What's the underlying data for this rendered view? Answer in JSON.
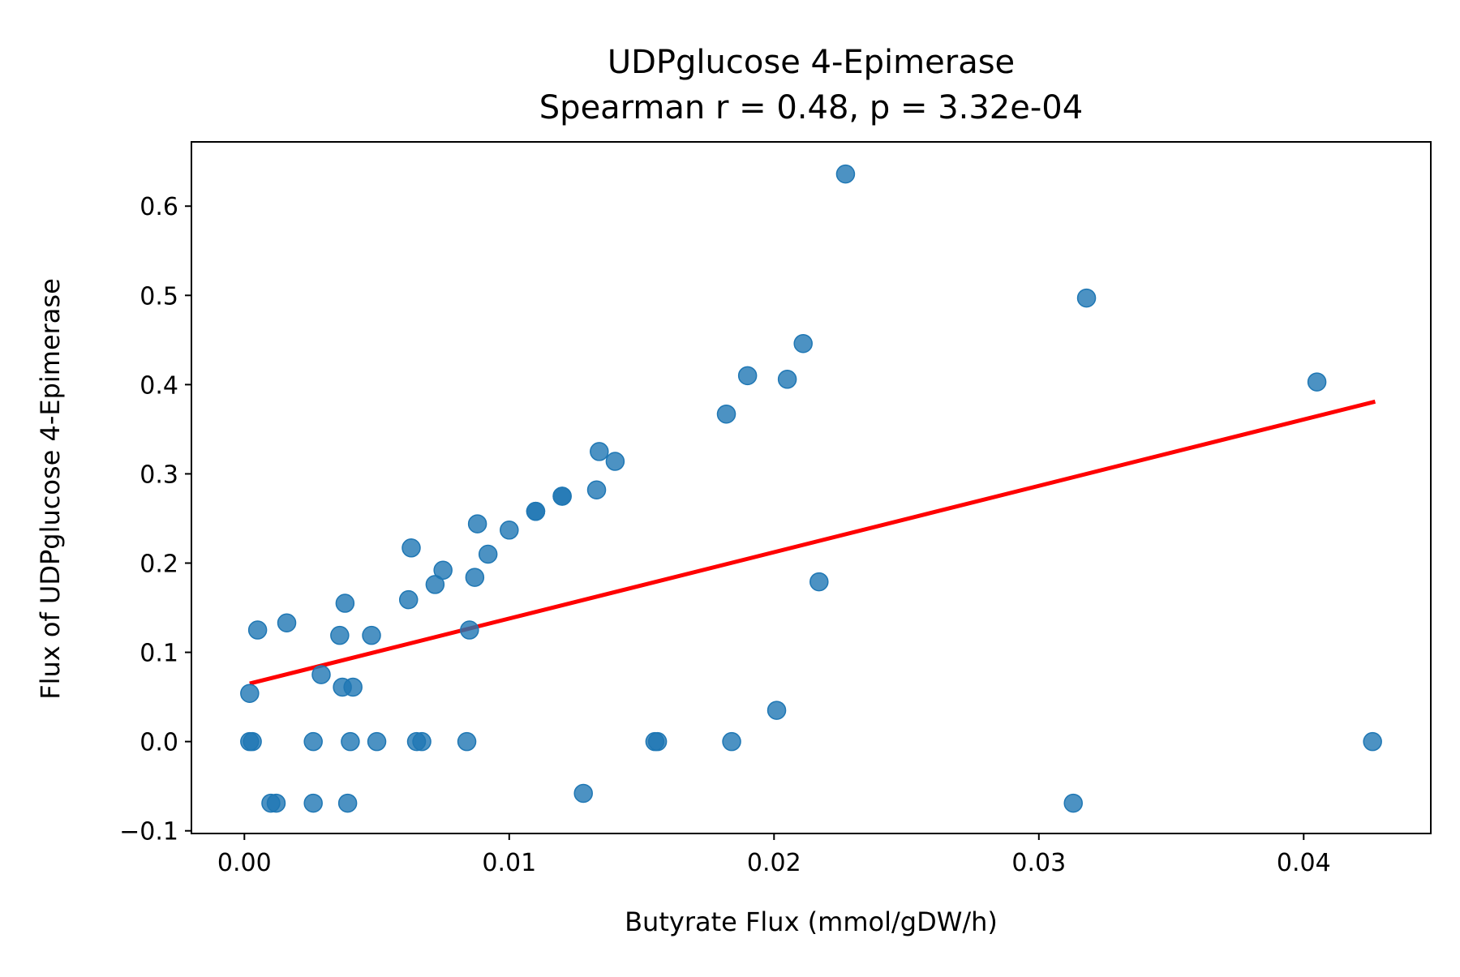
{
  "chart_data": {
    "type": "scatter",
    "title": "UDPglucose 4-Epimerase",
    "subtitle": "Spearman r = 0.48, p = 3.32e-04",
    "xlabel": "Butyrate Flux (mmol/gDW/h)",
    "ylabel": "Flux of UDPglucose 4-Epimerase",
    "xlim": [
      -0.002,
      0.0448
    ],
    "ylim": [
      -0.103,
      0.672
    ],
    "xticks": [
      0.0,
      0.01,
      0.02,
      0.03,
      0.04
    ],
    "xtick_labels": [
      "0.00",
      "0.01",
      "0.02",
      "0.03",
      "0.04"
    ],
    "yticks": [
      -0.1,
      0.0,
      0.1,
      0.2,
      0.3,
      0.4,
      0.5,
      0.6
    ],
    "ytick_labels": [
      "−0.1",
      "0.0",
      "0.1",
      "0.2",
      "0.3",
      "0.4",
      "0.5",
      "0.6"
    ],
    "grid": false,
    "point_color": "#1f77b4",
    "line_color": "#ff0000",
    "points": [
      {
        "x": 0.0002,
        "y": 0.054
      },
      {
        "x": 0.0002,
        "y": 0.0
      },
      {
        "x": 0.0003,
        "y": 0.0
      },
      {
        "x": 0.0005,
        "y": 0.125
      },
      {
        "x": 0.001,
        "y": -0.069
      },
      {
        "x": 0.0012,
        "y": -0.069
      },
      {
        "x": 0.0016,
        "y": 0.133
      },
      {
        "x": 0.0026,
        "y": -0.069
      },
      {
        "x": 0.0026,
        "y": 0.0
      },
      {
        "x": 0.0029,
        "y": 0.075
      },
      {
        "x": 0.0036,
        "y": 0.119
      },
      {
        "x": 0.0037,
        "y": 0.061
      },
      {
        "x": 0.0038,
        "y": 0.155
      },
      {
        "x": 0.0039,
        "y": -0.069
      },
      {
        "x": 0.004,
        "y": 0.0
      },
      {
        "x": 0.0041,
        "y": 0.061
      },
      {
        "x": 0.0048,
        "y": 0.119
      },
      {
        "x": 0.005,
        "y": 0.0
      },
      {
        "x": 0.0062,
        "y": 0.159
      },
      {
        "x": 0.0063,
        "y": 0.217
      },
      {
        "x": 0.0065,
        "y": 0.0
      },
      {
        "x": 0.0067,
        "y": 0.0
      },
      {
        "x": 0.0072,
        "y": 0.176
      },
      {
        "x": 0.0075,
        "y": 0.192
      },
      {
        "x": 0.0084,
        "y": 0.0
      },
      {
        "x": 0.0085,
        "y": 0.125
      },
      {
        "x": 0.0087,
        "y": 0.184
      },
      {
        "x": 0.0088,
        "y": 0.244
      },
      {
        "x": 0.0092,
        "y": 0.21
      },
      {
        "x": 0.01,
        "y": 0.237
      },
      {
        "x": 0.011,
        "y": 0.258
      },
      {
        "x": 0.011,
        "y": 0.258
      },
      {
        "x": 0.012,
        "y": 0.275
      },
      {
        "x": 0.012,
        "y": 0.275
      },
      {
        "x": 0.0128,
        "y": -0.058
      },
      {
        "x": 0.0133,
        "y": 0.282
      },
      {
        "x": 0.0134,
        "y": 0.325
      },
      {
        "x": 0.014,
        "y": 0.314
      },
      {
        "x": 0.0155,
        "y": 0.0
      },
      {
        "x": 0.0156,
        "y": 0.0
      },
      {
        "x": 0.0182,
        "y": 0.367
      },
      {
        "x": 0.0184,
        "y": 0.0
      },
      {
        "x": 0.019,
        "y": 0.41
      },
      {
        "x": 0.0201,
        "y": 0.035
      },
      {
        "x": 0.0205,
        "y": 0.406
      },
      {
        "x": 0.0211,
        "y": 0.446
      },
      {
        "x": 0.0217,
        "y": 0.179
      },
      {
        "x": 0.0227,
        "y": 0.636
      },
      {
        "x": 0.0313,
        "y": -0.069
      },
      {
        "x": 0.0318,
        "y": 0.497
      },
      {
        "x": 0.0405,
        "y": 0.403
      },
      {
        "x": 0.0426,
        "y": 0.0
      }
    ],
    "fit_line": {
      "x": [
        0.0002,
        0.0427
      ],
      "y": [
        0.065,
        0.381
      ]
    }
  }
}
